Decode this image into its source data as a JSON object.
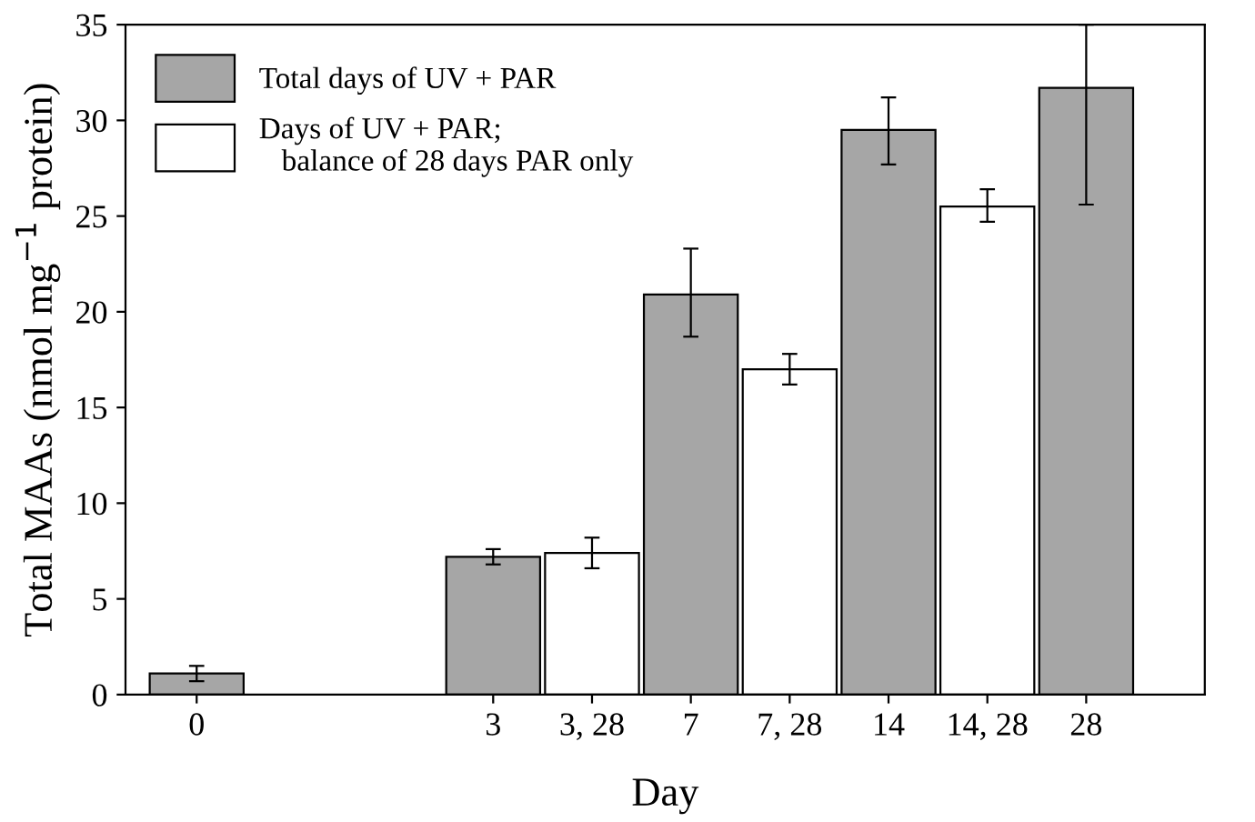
{
  "chart_data": {
    "type": "bar",
    "xlabel": "Day",
    "ylabel": "Total MAAs (nmol mg$^{−1}$ protein)",
    "categories": [
      "0",
      null,
      null,
      "3",
      "3, 28",
      "7",
      "7, 28",
      "14",
      "14, 28",
      "28"
    ],
    "series": [
      {
        "name": "Total days of UV + PAR",
        "color": "#a6a6a6",
        "values": [
          1.1,
          null,
          null,
          7.2,
          null,
          20.9,
          null,
          29.5,
          null,
          31.7
        ],
        "errors": [
          [
            0.7,
            1.5
          ],
          null,
          null,
          [
            6.8,
            7.6
          ],
          null,
          [
            18.7,
            23.3
          ],
          null,
          [
            27.7,
            31.2
          ],
          null,
          [
            25.6,
            35
          ]
        ]
      },
      {
        "name": "Days of UV + PAR;\n   balance of 28 days PAR only",
        "color": "#ffffff",
        "values": [
          null,
          null,
          null,
          null,
          7.4,
          null,
          17.0,
          null,
          25.5,
          null
        ],
        "errors": [
          null,
          null,
          null,
          null,
          [
            6.6,
            8.2
          ],
          null,
          [
            16.2,
            17.8
          ],
          null,
          [
            24.7,
            26.4
          ],
          null
        ]
      }
    ],
    "ylim": [
      0,
      35
    ],
    "yticks": [
      0,
      5,
      10,
      15,
      20,
      25,
      30,
      35
    ],
    "legend": "top left",
    "grid": false
  }
}
